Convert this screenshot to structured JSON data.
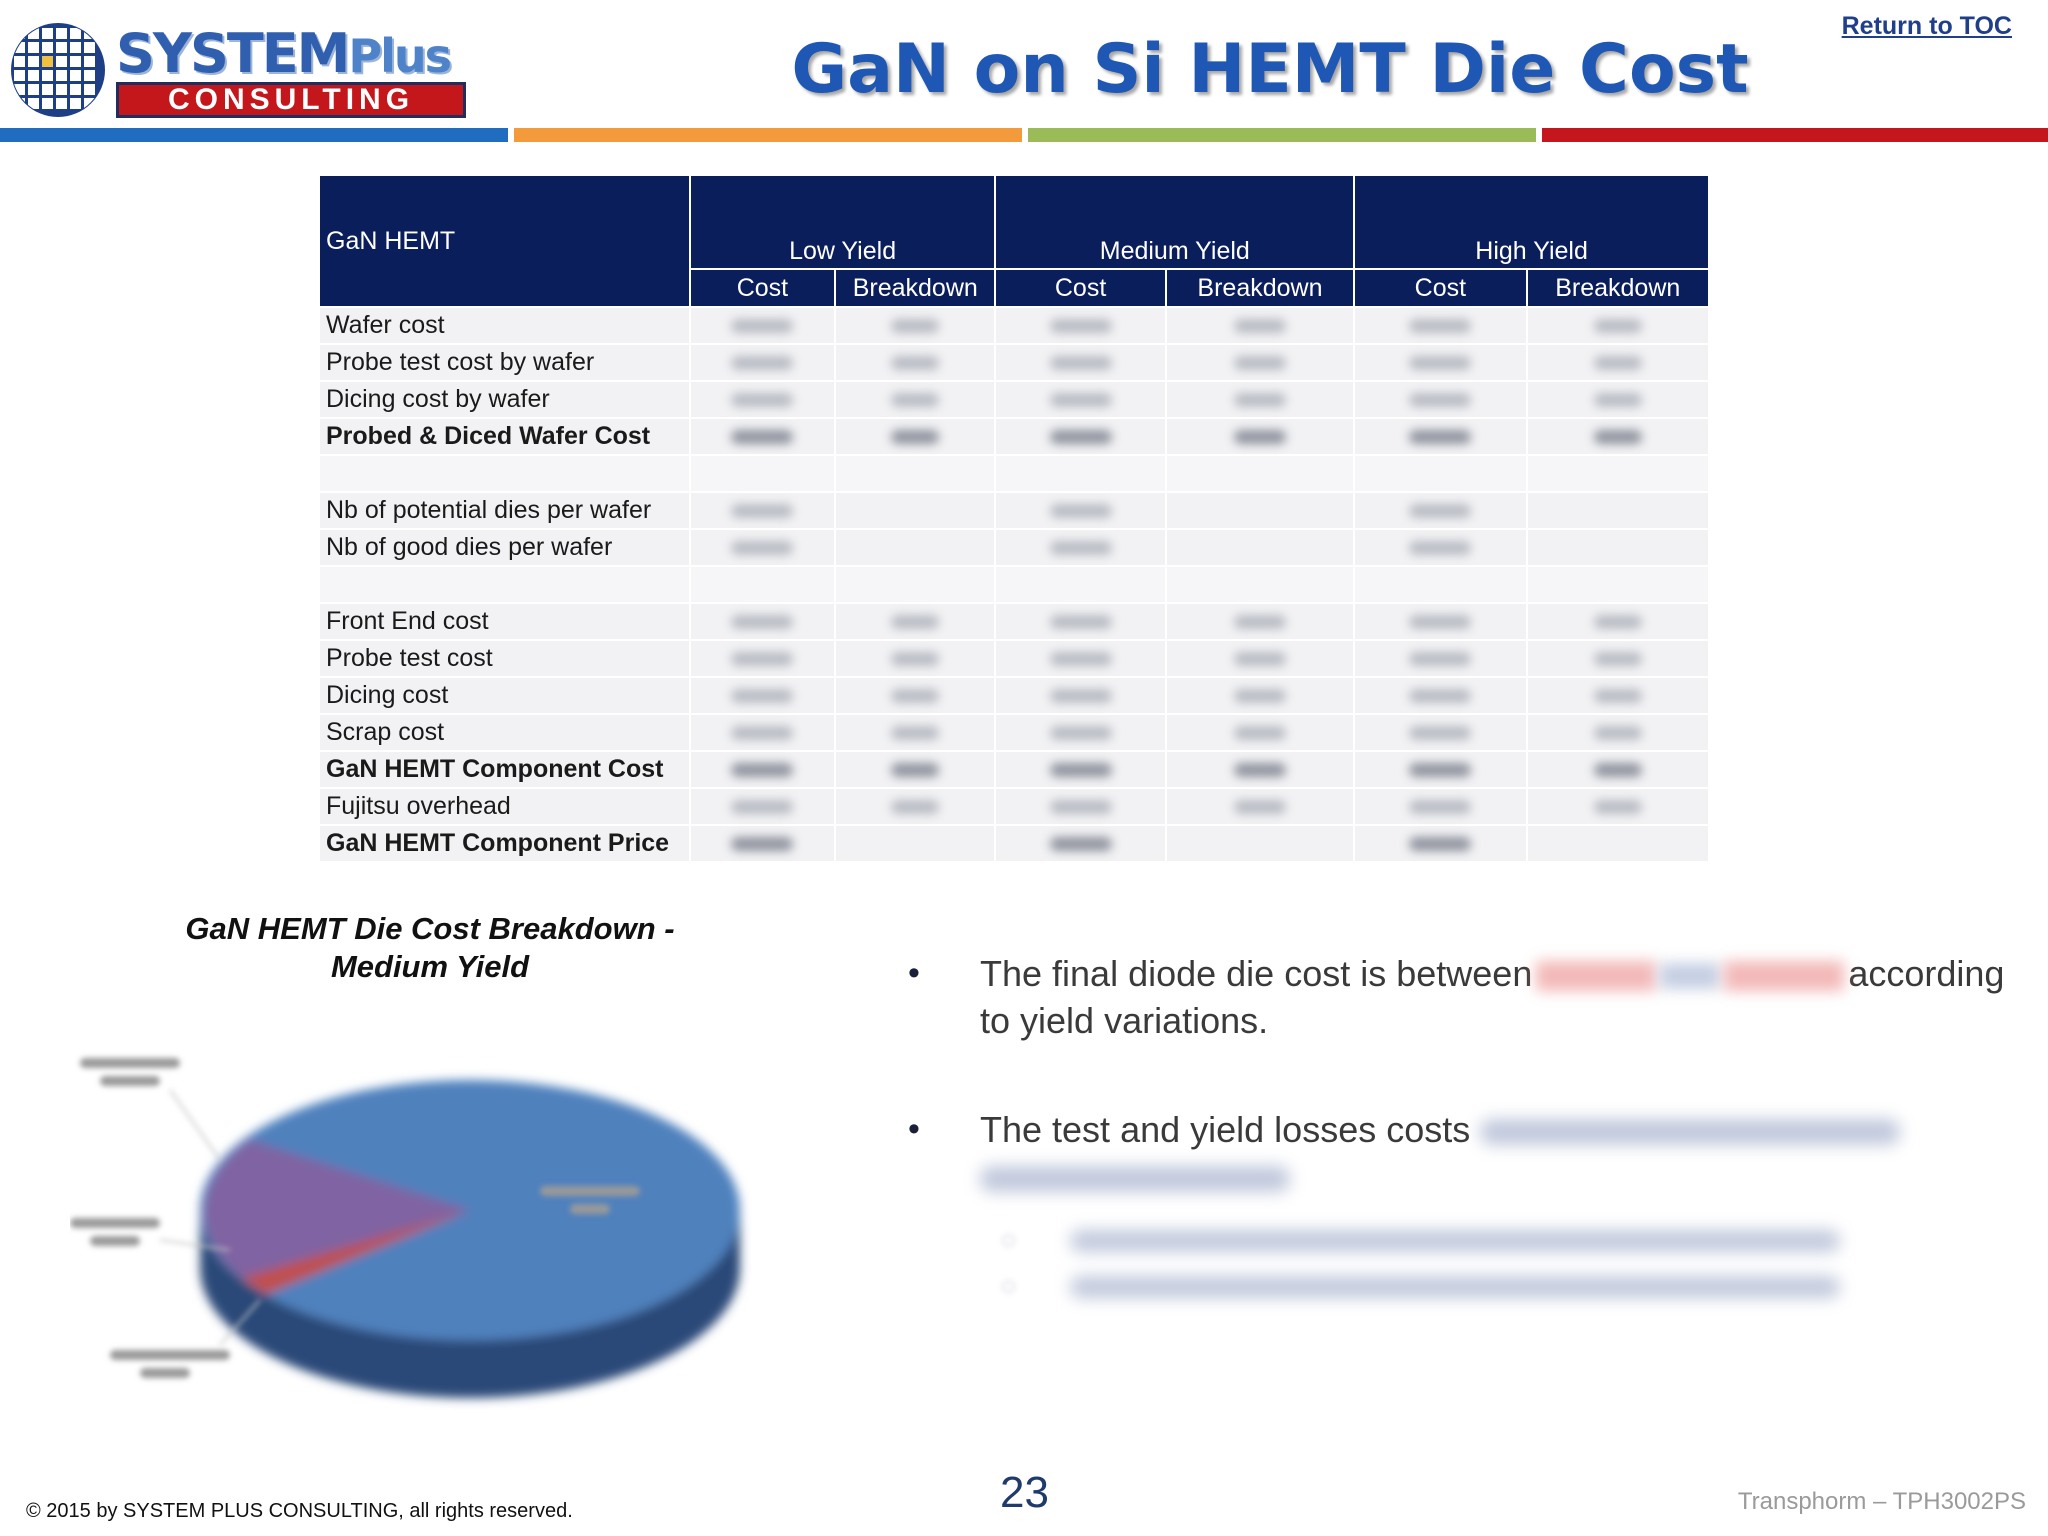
{
  "header": {
    "logo": {
      "word_main": "SYSTEM",
      "word_plus": "Plus",
      "band": "CONSULTING"
    },
    "title": "GaN on Si HEMT Die Cost",
    "toc_link": "Return to TOC",
    "rule_colors": [
      "#1f6cc0",
      "#f39a3c",
      "#9bbb59",
      "#c4161c"
    ]
  },
  "table": {
    "corner_label": "GaN HEMT",
    "groups": [
      "Low Yield",
      "Medium Yield",
      "High Yield"
    ],
    "subheaders": [
      "Cost",
      "Breakdown",
      "Cost",
      "Breakdown",
      "Cost",
      "Breakdown"
    ],
    "rows": [
      {
        "label": "Wafer cost",
        "bold": false,
        "cols": 6
      },
      {
        "label": "Probe test cost by wafer",
        "bold": false,
        "cols": 6
      },
      {
        "label": "Dicing cost by wafer",
        "bold": false,
        "cols": 6
      },
      {
        "label": "Probed & Diced Wafer Cost",
        "bold": true,
        "cols": 6
      },
      {
        "label": "",
        "spacer": true
      },
      {
        "label": "Nb of potential dies per wafer",
        "bold": false,
        "cols": 3
      },
      {
        "label": "Nb of good dies per wafer",
        "bold": false,
        "cols": 3
      },
      {
        "label": "",
        "spacer": true
      },
      {
        "label": "Front End cost",
        "bold": false,
        "cols": 6
      },
      {
        "label": "Probe test cost",
        "bold": false,
        "cols": 6
      },
      {
        "label": "Dicing cost",
        "bold": false,
        "cols": 6
      },
      {
        "label": "Scrap cost",
        "bold": false,
        "cols": 6
      },
      {
        "label": "GaN HEMT Component Cost",
        "bold": true,
        "cols": 6
      },
      {
        "label": "Fujitsu overhead",
        "bold": false,
        "cols": 6
      },
      {
        "label": "GaN HEMT Component Price",
        "bold": true,
        "cols": 3
      }
    ]
  },
  "pie": {
    "title_line1": "GaN HEMT Die Cost Breakdown -",
    "title_line2": "Medium Yield",
    "colors": {
      "main": "#4f81bd",
      "secondary": "#8064a2",
      "small": "#c0504d",
      "dark": "#2c4a78"
    }
  },
  "bullets": {
    "b1_start": "The final diode die cost is between",
    "b1_end": "according",
    "b1_line2": "to yield variations.",
    "b2_start": "The test and yield losses costs"
  },
  "footer": {
    "copyright": "© 2015 by SYSTEM PLUS CONSULTING, all rights reserved.",
    "page_number": "23",
    "doc_ref": "Transphorm – TPH3002PS"
  }
}
